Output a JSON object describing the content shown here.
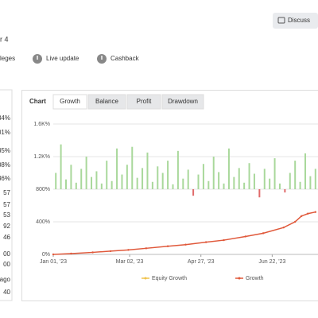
{
  "header": {
    "title": "r 4",
    "discuss": "Discuss"
  },
  "badges": [
    "leges",
    "Live update",
    "Cashback"
  ],
  "stats": [
    {
      "text": "34%",
      "positive": true
    },
    {
      "text": "01%",
      "positive": true
    },
    {
      "text": "35%"
    },
    {
      "text": "08%"
    },
    {
      "text": "36%"
    },
    {
      "text": "57"
    },
    {
      "text": "57"
    },
    {
      "text": "53"
    },
    {
      "text": "92",
      "positive": true
    },
    {
      "text": "46"
    },
    {
      "text": "00"
    },
    {
      "text": "00"
    },
    {
      "text": "ago"
    },
    {
      "text": "40"
    }
  ],
  "tabs": {
    "label": "Chart",
    "items": [
      "Growth",
      "Balance",
      "Profit",
      "Drawdown"
    ],
    "selected": 0
  },
  "chart": {
    "type": "line",
    "ylim": [
      0,
      1600
    ],
    "yticks": [
      {
        "value": 0,
        "label": "0%"
      },
      {
        "value": 400,
        "label": "400%"
      },
      {
        "value": 800,
        "label": "800%"
      },
      {
        "value": 1200,
        "label": "1.2K%"
      },
      {
        "value": 1600,
        "label": "1.6K%"
      }
    ],
    "xlim": [
      "2023-01-01",
      "2023-07-28"
    ],
    "xticks": [
      {
        "value": "2023-01-01",
        "label": "Jan 01, '23"
      },
      {
        "value": "2023-03-02",
        "label": "Mar 02, '23"
      },
      {
        "value": "2023-04-27",
        "label": "Apr 27, '23"
      },
      {
        "value": "2023-06-22",
        "label": "Jun 22, '23"
      }
    ],
    "grid": true,
    "bars": {
      "base": 800,
      "color": "#a9d89b",
      "negative_color": "#e06a6a",
      "x": [
        "2023-01-03",
        "2023-01-07",
        "2023-01-11",
        "2023-01-15",
        "2023-01-19",
        "2023-01-23",
        "2023-01-27",
        "2023-01-31",
        "2023-02-04",
        "2023-02-08",
        "2023-02-12",
        "2023-02-16",
        "2023-02-20",
        "2023-02-24",
        "2023-02-28",
        "2023-03-04",
        "2023-03-08",
        "2023-03-12",
        "2023-03-16",
        "2023-03-20",
        "2023-03-24",
        "2023-03-28",
        "2023-04-01",
        "2023-04-05",
        "2023-04-09",
        "2023-04-13",
        "2023-04-17",
        "2023-04-21",
        "2023-04-25",
        "2023-04-29",
        "2023-05-03",
        "2023-05-07",
        "2023-05-11",
        "2023-05-15",
        "2023-05-19",
        "2023-05-23",
        "2023-05-27",
        "2023-05-31",
        "2023-06-04",
        "2023-06-08",
        "2023-06-12",
        "2023-06-16",
        "2023-06-20",
        "2023-06-24",
        "2023-06-28",
        "2023-07-02",
        "2023-07-06",
        "2023-07-10",
        "2023-07-14",
        "2023-07-18",
        "2023-07-22",
        "2023-07-26"
      ],
      "values": [
        1000,
        1350,
        920,
        1100,
        880,
        1050,
        1200,
        950,
        1020,
        870,
        1150,
        900,
        1300,
        980,
        1100,
        1320,
        940,
        1060,
        1250,
        890,
        1080,
        1000,
        1150,
        860,
        1270,
        930,
        1040,
        720,
        980,
        1110,
        900,
        1200,
        1010,
        870,
        1300,
        950,
        1060,
        880,
        1120,
        990,
        700,
        1050,
        930,
        1180,
        870,
        760,
        1000,
        1150,
        890,
        1240,
        960,
        1050
      ]
    },
    "series": [
      {
        "name": "Equity Growth",
        "color": "#f0c24a",
        "x": [],
        "values": []
      },
      {
        "name": "Growth",
        "color": "#e0583a",
        "x": [
          "2023-01-01",
          "2023-01-15",
          "2023-02-01",
          "2023-02-15",
          "2023-03-01",
          "2023-03-15",
          "2023-04-01",
          "2023-04-15",
          "2023-05-01",
          "2023-05-15",
          "2023-06-01",
          "2023-06-15",
          "2023-07-01",
          "2023-07-10",
          "2023-07-15",
          "2023-07-20",
          "2023-07-26"
        ],
        "values": [
          0,
          10,
          25,
          40,
          55,
          75,
          100,
          120,
          150,
          175,
          220,
          260,
          330,
          400,
          470,
          500,
          520
        ]
      }
    ]
  }
}
